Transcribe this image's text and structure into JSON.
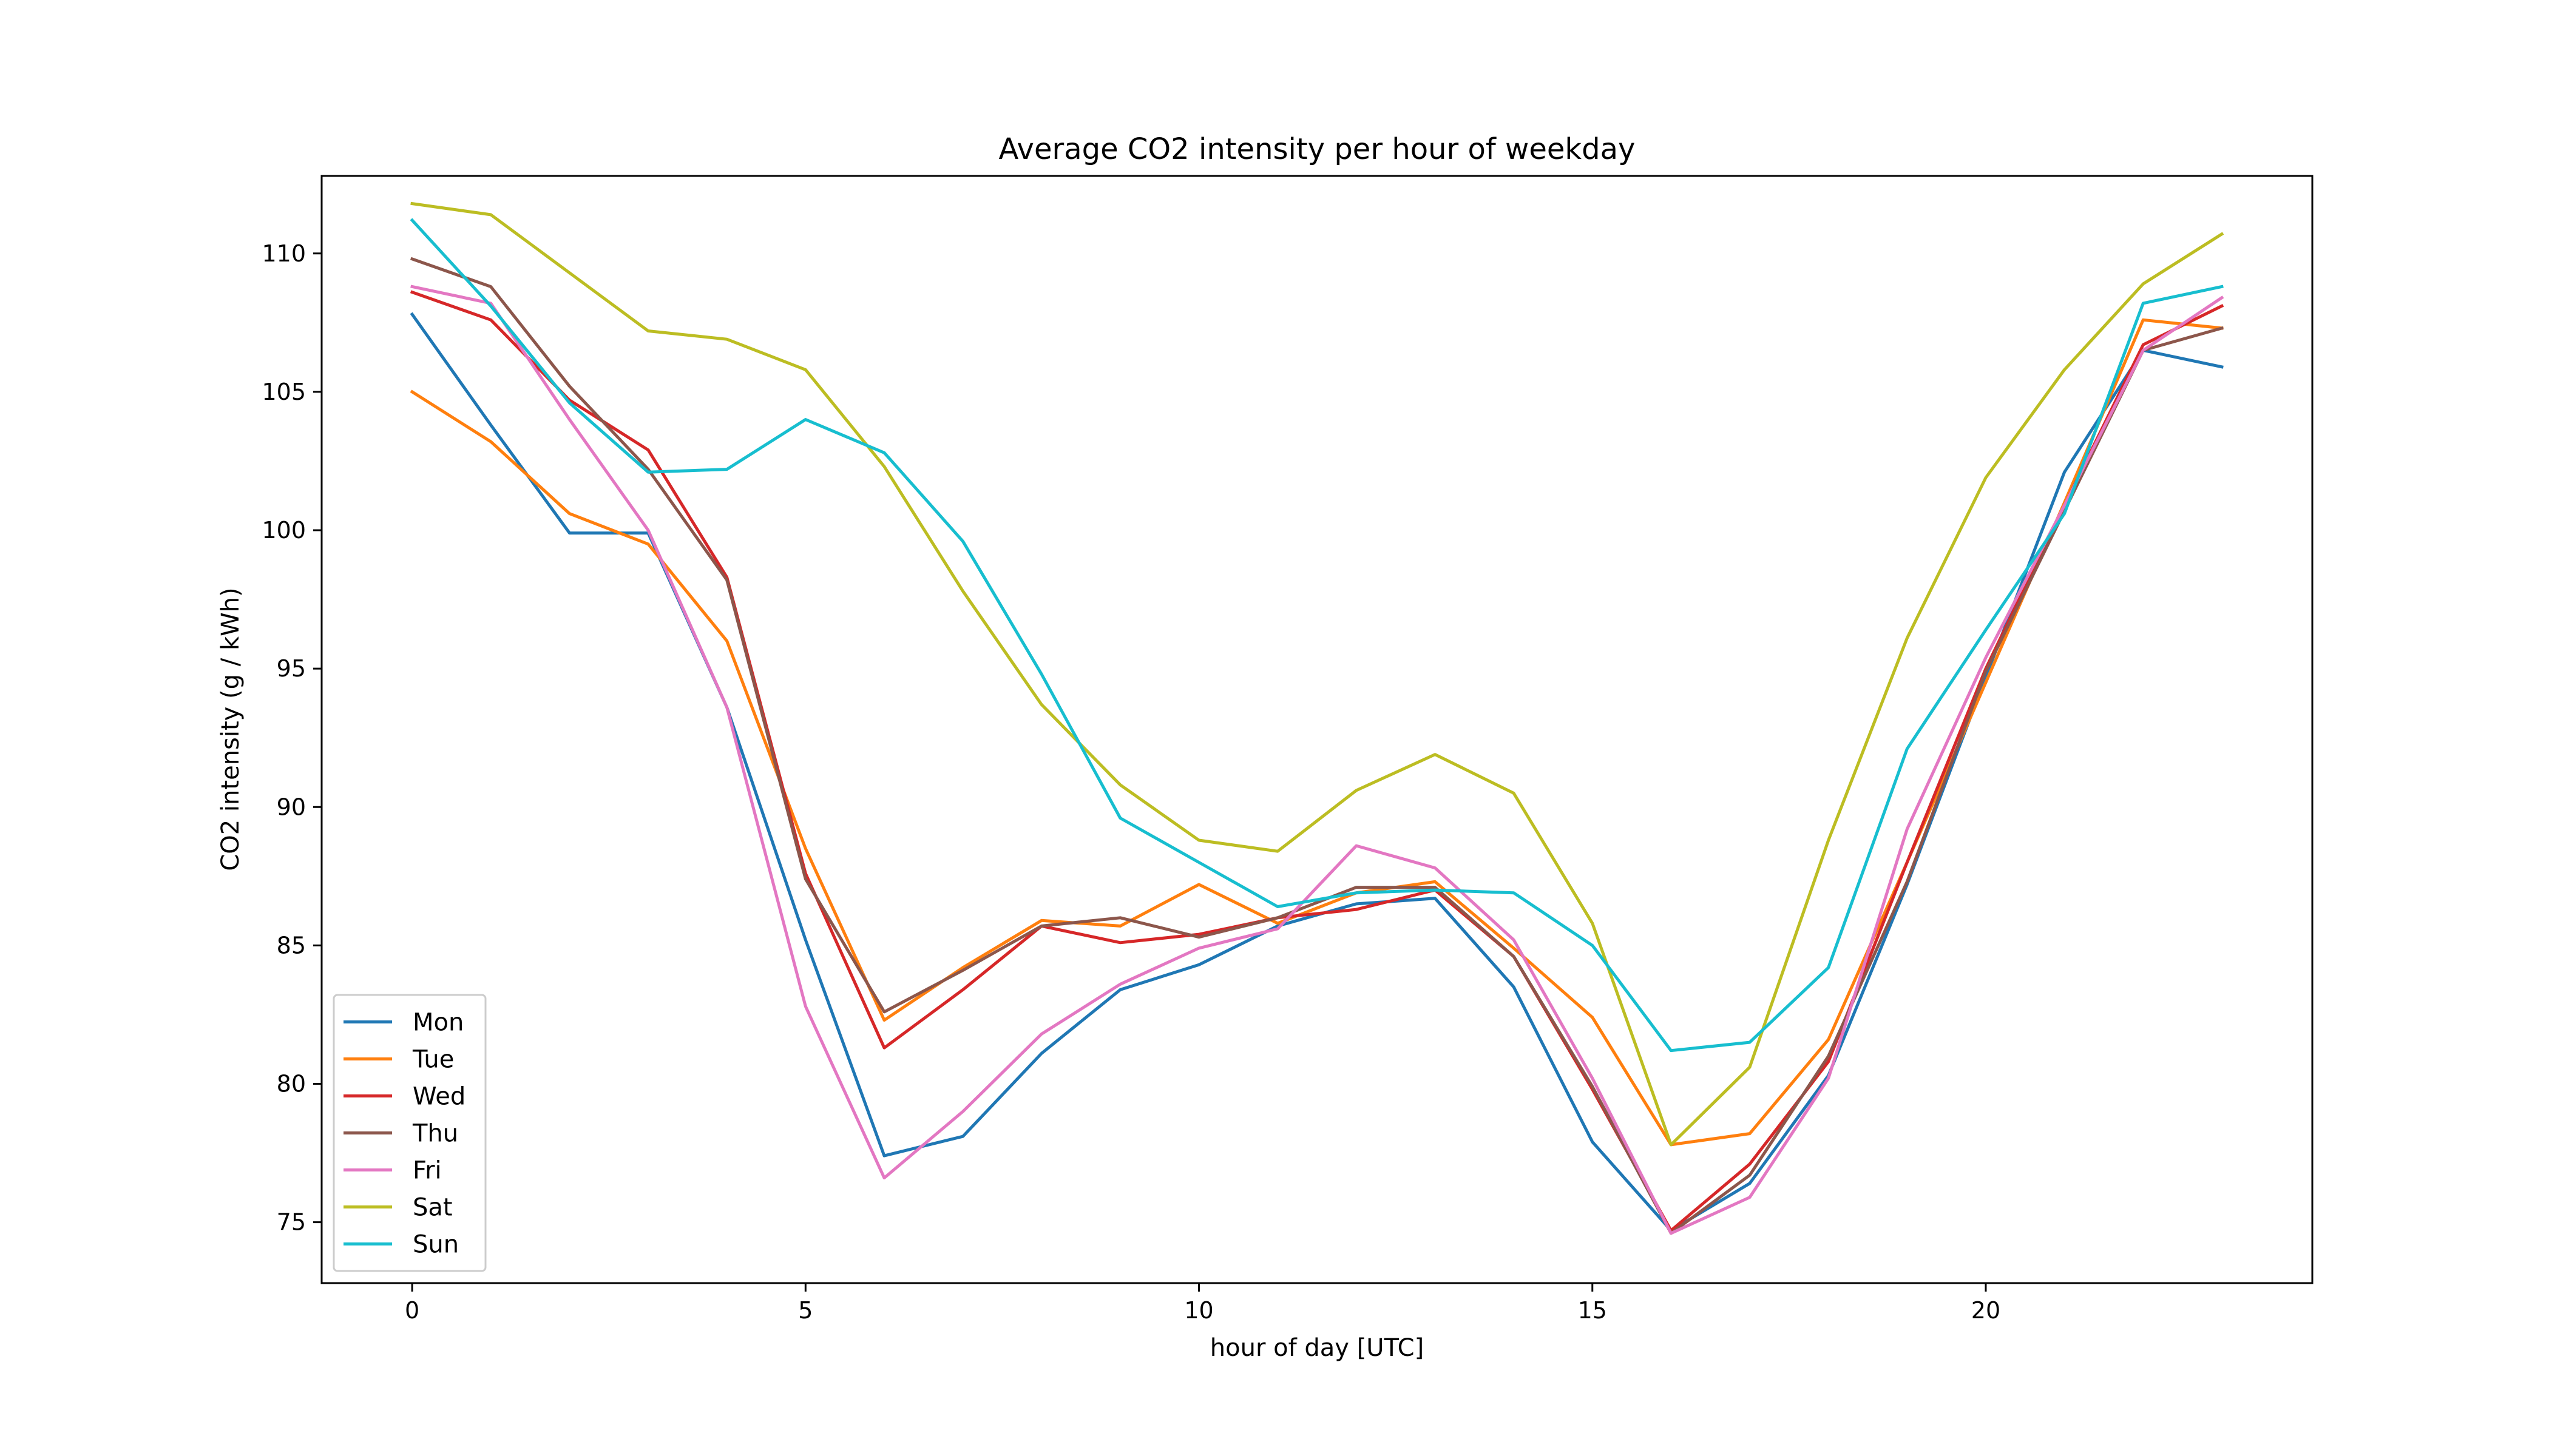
{
  "chart_data": {
    "type": "line",
    "title": "Average CO2 intensity per hour of weekday",
    "xlabel": "hour of day [UTC]",
    "ylabel": "CO2 intensity (g / kWh)",
    "xlim": [
      -1.15,
      24.15
    ],
    "ylim": [
      72.8,
      112.8
    ],
    "xticks": [
      0,
      5,
      10,
      15,
      20
    ],
    "yticks": [
      75,
      80,
      85,
      90,
      95,
      100,
      105,
      110
    ],
    "grid": false,
    "legend_position": "lower-left",
    "x": [
      0,
      1,
      2,
      3,
      4,
      5,
      6,
      7,
      8,
      9,
      10,
      11,
      12,
      13,
      14,
      15,
      16,
      17,
      18,
      19,
      20,
      21,
      22,
      23
    ],
    "series": [
      {
        "name": "Mon",
        "color": "#1f77b4",
        "values": [
          107.8,
          103.8,
          99.9,
          99.9,
          93.6,
          85.2,
          77.4,
          78.1,
          81.1,
          83.4,
          84.3,
          85.7,
          86.5,
          86.7,
          83.5,
          77.9,
          74.7,
          76.4,
          80.3,
          87.2,
          94.7,
          102.1,
          106.5,
          105.9
        ]
      },
      {
        "name": "Tue",
        "color": "#ff7f0e",
        "values": [
          105.0,
          103.2,
          100.6,
          99.5,
          96.0,
          88.5,
          82.3,
          84.2,
          85.9,
          85.7,
          87.2,
          85.8,
          86.9,
          87.3,
          84.9,
          82.4,
          77.8,
          78.2,
          81.6,
          88.0,
          94.5,
          101.0,
          107.6,
          107.3
        ]
      },
      {
        "name": "Wed",
        "color": "#d62728",
        "values": [
          108.6,
          107.6,
          104.7,
          102.9,
          98.3,
          87.6,
          81.3,
          83.4,
          85.7,
          85.1,
          85.4,
          86.0,
          86.3,
          87.0,
          84.6,
          79.8,
          74.7,
          77.1,
          80.8,
          88.0,
          95.0,
          100.9,
          106.7,
          108.1
        ]
      },
      {
        "name": "Thu",
        "color": "#8c564b",
        "values": [
          109.8,
          108.8,
          105.2,
          102.2,
          98.2,
          87.4,
          82.6,
          84.1,
          85.7,
          86.0,
          85.3,
          86.0,
          87.1,
          87.1,
          84.6,
          79.9,
          74.6,
          76.7,
          81.0,
          87.3,
          94.9,
          100.7,
          106.5,
          107.3
        ]
      },
      {
        "name": "Fri",
        "color": "#e377c2",
        "values": [
          108.8,
          108.2,
          104.0,
          100.0,
          93.6,
          82.8,
          76.6,
          79.0,
          81.8,
          83.6,
          84.9,
          85.6,
          88.6,
          87.8,
          85.2,
          80.2,
          74.6,
          75.9,
          80.2,
          89.2,
          95.4,
          100.9,
          106.5,
          108.4
        ]
      },
      {
        "name": "Sat",
        "color": "#bcbd22",
        "values": [
          111.8,
          111.4,
          109.3,
          107.2,
          106.9,
          105.8,
          102.3,
          97.8,
          93.7,
          90.8,
          88.8,
          88.4,
          90.6,
          91.9,
          90.5,
          85.8,
          77.8,
          80.6,
          88.8,
          96.1,
          101.9,
          105.8,
          108.9,
          110.7
        ]
      },
      {
        "name": "Sun",
        "color": "#17becf",
        "values": [
          111.2,
          108.1,
          104.6,
          102.1,
          102.2,
          104.0,
          102.8,
          99.6,
          94.8,
          89.6,
          88.0,
          86.4,
          86.9,
          87.0,
          86.9,
          85.0,
          81.2,
          81.5,
          84.2,
          92.1,
          96.4,
          100.6,
          108.2,
          108.8
        ]
      }
    ]
  }
}
